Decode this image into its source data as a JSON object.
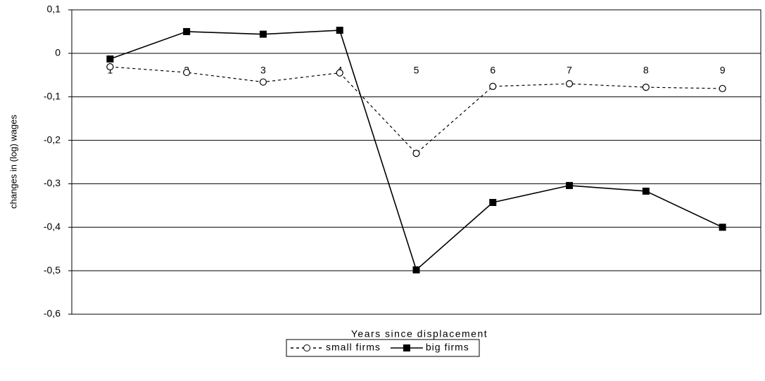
{
  "chart_data": {
    "type": "line",
    "x_label": "Years since displacement",
    "y_label": "changes in (log) wages",
    "categories": [
      "1",
      "2",
      "3",
      "4",
      "5",
      "6",
      "7",
      "8",
      "9"
    ],
    "series": [
      {
        "name": "small firms",
        "color": "#000000",
        "line_style": "dashed",
        "marker": "circle",
        "values": [
          -0.031,
          -0.044,
          -0.066,
          -0.045,
          -0.23,
          -0.076,
          -0.07,
          -0.078,
          -0.081
        ]
      },
      {
        "name": "big firms",
        "color": "#000000",
        "line_style": "solid",
        "marker": "square",
        "values": [
          -0.013,
          0.05,
          0.044,
          0.053,
          -0.498,
          -0.343,
          -0.304,
          -0.317,
          -0.4
        ]
      }
    ],
    "ylim": [
      -0.6,
      0.1
    ],
    "yticks": [
      {
        "value": -0.6,
        "label": "-0,6"
      },
      {
        "value": -0.5,
        "label": "-0,5"
      },
      {
        "value": -0.4,
        "label": "-0,4"
      },
      {
        "value": -0.3,
        "label": "-0,3"
      },
      {
        "value": -0.2,
        "label": "-0,2"
      },
      {
        "value": -0.1,
        "label": "-0,1"
      },
      0,
      {
        "value": 0.1,
        "label": "0,1"
      }
    ],
    "grid": true,
    "legend": "bottom"
  }
}
